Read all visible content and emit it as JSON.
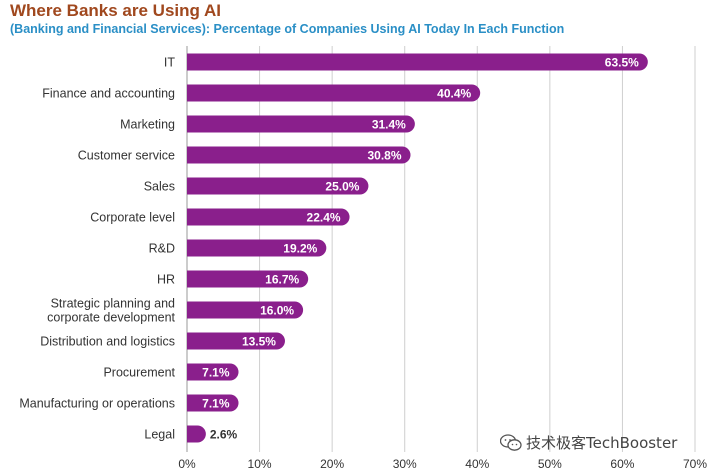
{
  "header": {
    "title": "Where Banks are Using AI",
    "subtitle": "(Banking and Financial Services): Percentage of Companies Using AI Today In Each Function"
  },
  "watermark": {
    "text": "技术极客TechBooster",
    "icon": "wechat-icon"
  },
  "colors": {
    "bar": "#8a1f8c",
    "bar_label_inside": "#ffffff",
    "bar_label_outside": "#333333",
    "grid": "#cfcfcf",
    "title": "#a0481e",
    "subtitle": "#2a8fc6"
  },
  "chart_data": {
    "type": "bar",
    "orientation": "horizontal",
    "categories": [
      "IT",
      "Finance and accounting",
      "Marketing",
      "Customer service",
      "Sales",
      "Corporate level",
      "R&D",
      "HR",
      "Strategic planning and corporate development",
      "Distribution and logistics",
      "Procurement",
      "Manufacturing or operations",
      "Legal"
    ],
    "category_lines": [
      [
        "IT"
      ],
      [
        "Finance and accounting"
      ],
      [
        "Marketing"
      ],
      [
        "Customer service"
      ],
      [
        "Sales"
      ],
      [
        "Corporate level"
      ],
      [
        "R&D"
      ],
      [
        "HR"
      ],
      [
        "Strategic planning and",
        "corporate development"
      ],
      [
        "Distribution and logistics"
      ],
      [
        "Procurement"
      ],
      [
        "Manufacturing or operations"
      ],
      [
        "Legal"
      ]
    ],
    "values": [
      63.5,
      40.4,
      31.4,
      30.8,
      25.0,
      22.4,
      19.2,
      16.7,
      16.0,
      13.5,
      7.1,
      7.1,
      2.6
    ],
    "value_labels": [
      "63.5%",
      "40.4%",
      "31.4%",
      "30.8%",
      "25.0%",
      "22.4%",
      "19.2%",
      "16.7%",
      "16.0%",
      "13.5%",
      "7.1%",
      "7.1%",
      "2.6%"
    ],
    "xlim": [
      0,
      70
    ],
    "xticks": [
      0,
      10,
      20,
      30,
      40,
      50,
      60,
      70
    ],
    "xtick_labels": [
      "0%",
      "10%",
      "20%",
      "30%",
      "40%",
      "50%",
      "60%",
      "70%"
    ],
    "grid": true
  }
}
